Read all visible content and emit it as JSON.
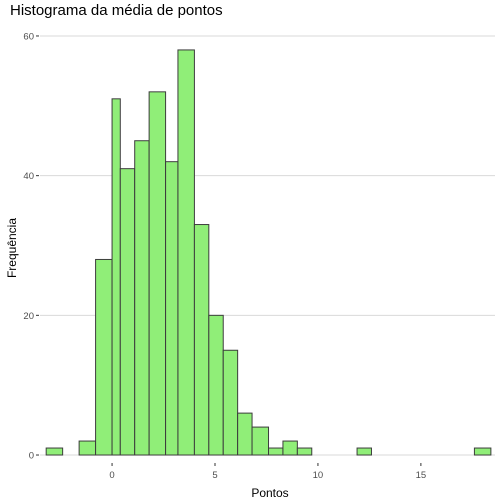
{
  "chart_data": {
    "type": "bar",
    "title": "Histograma da média de pontos",
    "xlabel": "Pontos",
    "ylabel": "Frequência",
    "x_ticks": [
      0,
      5,
      10,
      15
    ],
    "y_ticks": [
      0,
      20,
      40,
      60
    ],
    "xlim": [
      -3.5,
      18.6
    ],
    "ylim": [
      -1,
      62
    ],
    "grid": true,
    "fill_color": "#90EE78",
    "border_color": "#3c3c3c",
    "bins": [
      {
        "x_start": -3.2,
        "x_end": -2.4,
        "count": 1
      },
      {
        "x_start": -2.4,
        "x_end": -1.6,
        "count": 0
      },
      {
        "x_start": -1.6,
        "x_end": -0.8,
        "count": 2
      },
      {
        "x_start": -0.8,
        "x_end": 0.0,
        "count": 28
      },
      {
        "x_start": 0.0,
        "x_end": 0.4,
        "count": 51
      },
      {
        "x_start": 0.4,
        "x_end": 1.1,
        "count": 41
      },
      {
        "x_start": 1.1,
        "x_end": 1.8,
        "count": 45
      },
      {
        "x_start": 1.8,
        "x_end": 2.6,
        "count": 52
      },
      {
        "x_start": 2.6,
        "x_end": 3.2,
        "count": 42
      },
      {
        "x_start": 3.2,
        "x_end": 4.0,
        "count": 58
      },
      {
        "x_start": 4.0,
        "x_end": 4.7,
        "count": 33
      },
      {
        "x_start": 4.7,
        "x_end": 5.4,
        "count": 20
      },
      {
        "x_start": 5.4,
        "x_end": 6.1,
        "count": 15
      },
      {
        "x_start": 6.1,
        "x_end": 6.8,
        "count": 6
      },
      {
        "x_start": 6.8,
        "x_end": 7.6,
        "count": 4
      },
      {
        "x_start": 7.6,
        "x_end": 8.3,
        "count": 1
      },
      {
        "x_start": 8.3,
        "x_end": 9.0,
        "count": 2
      },
      {
        "x_start": 9.0,
        "x_end": 9.7,
        "count": 1
      },
      {
        "x_start": 9.7,
        "x_end": 10.4,
        "count": 0
      },
      {
        "x_start": 10.4,
        "x_end": 11.2,
        "count": 0
      },
      {
        "x_start": 11.2,
        "x_end": 11.9,
        "count": 0
      },
      {
        "x_start": 11.9,
        "x_end": 12.6,
        "count": 1
      },
      {
        "x_start": 12.6,
        "x_end": 13.3,
        "count": 0
      },
      {
        "x_start": 13.3,
        "x_end": 14.0,
        "count": 0
      },
      {
        "x_start": 14.0,
        "x_end": 14.7,
        "count": 0
      },
      {
        "x_start": 14.7,
        "x_end": 15.5,
        "count": 0
      },
      {
        "x_start": 15.5,
        "x_end": 16.2,
        "count": 0
      },
      {
        "x_start": 16.2,
        "x_end": 16.9,
        "count": 0
      },
      {
        "x_start": 16.9,
        "x_end": 17.6,
        "count": 0
      },
      {
        "x_start": 17.6,
        "x_end": 18.4,
        "count": 1
      }
    ]
  }
}
